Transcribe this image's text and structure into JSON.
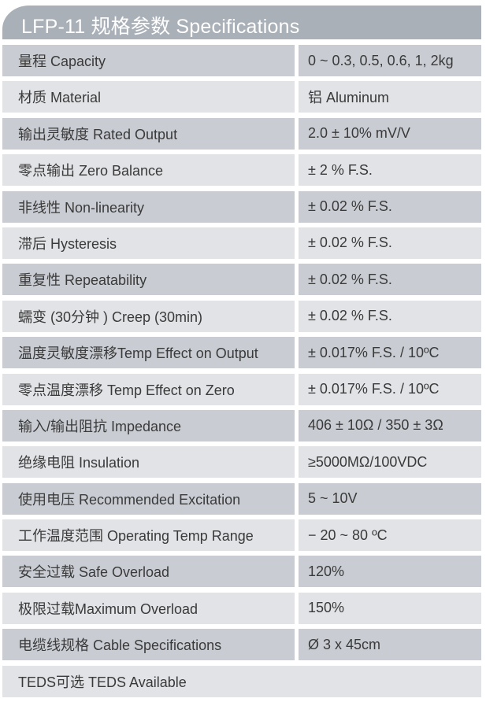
{
  "title": "LFP-11 规格参数 Specifications",
  "rows": [
    {
      "label": "量程 Capacity",
      "value": "0 ~ 0.3, 0.5, 0.6, 1, 2kg"
    },
    {
      "label": "材质 Material",
      "value": "铝 Aluminum"
    },
    {
      "label": "输出灵敏度 Rated Output",
      "value": "2.0 ± 10% mV/V"
    },
    {
      "label": "零点输出  Zero Balance",
      "value": "± 2 % F.S."
    },
    {
      "label": "非线性 Non-linearity",
      "value": "± 0.02 % F.S."
    },
    {
      "label": "滞后 Hysteresis",
      "value": "± 0.02 % F.S."
    },
    {
      "label": "重复性 Repeatability",
      "value": "± 0.02 % F.S."
    },
    {
      "label": "蠕变 (30分钟 ) Creep (30min)",
      "value": "± 0.02 % F.S."
    },
    {
      "label": "温度灵敏度漂移Temp Effect on Output",
      "value": "± 0.017% F.S. / 10ºC"
    },
    {
      "label": "零点温度漂移 Temp Effect on Zero",
      "value": "± 0.017% F.S. / 10ºC"
    },
    {
      "label": "输入/输出阻抗 Impedance",
      "value": "406 ± 10Ω / 350 ± 3Ω"
    },
    {
      "label": "绝缘电阻  Insulation",
      "value": "≥5000MΩ/100VDC"
    },
    {
      "label": "使用电压 Recommended Excitation",
      "value": "5 ~ 10V"
    },
    {
      "label": "工作温度范围 Operating Temp  Range",
      "value": "− 20 ~ 80 ºC"
    },
    {
      "label": "安全过载 Safe Overload",
      "value": "120%"
    },
    {
      "label": "极限过载Maximum Overload",
      "value": "150%"
    },
    {
      "label": "电缆线规格 Cable Specifications",
      "value": "Ø 3 x 45cm"
    }
  ],
  "footer_row": {
    "label": "TEDS可选 TEDS Available"
  }
}
